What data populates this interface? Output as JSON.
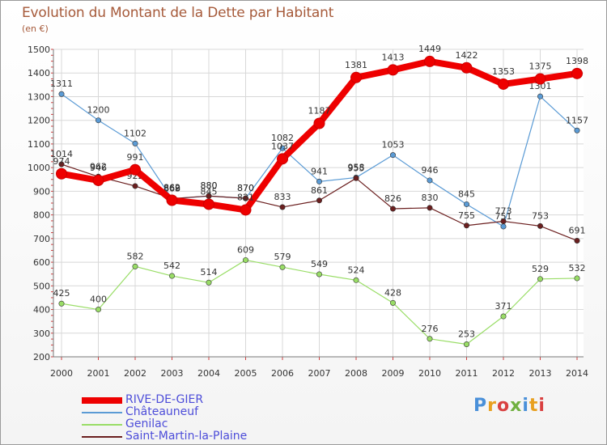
{
  "header": {
    "title": "Evolution du Montant de la Dette par Habitant",
    "unit": "(en €)"
  },
  "logo": {
    "text": "Proxiti",
    "colors": [
      "#4a90d9",
      "#e8a020",
      "#d94040",
      "#70b040",
      "#4a90d9",
      "#e8a020",
      "#d94040"
    ]
  },
  "chart_data": {
    "type": "line",
    "title": "Evolution du Montant de la Dette par Habitant",
    "ylabel": "(en €)",
    "xlabel": "",
    "x": [
      "2000",
      "2001",
      "2002",
      "2003",
      "2004",
      "2005",
      "2006",
      "2007",
      "2008",
      "2009",
      "2010",
      "2011",
      "2012",
      "2013",
      "2014"
    ],
    "ylim": [
      200,
      1500
    ],
    "yticks": [
      200,
      300,
      400,
      500,
      600,
      700,
      800,
      900,
      1000,
      1100,
      1200,
      1300,
      1400,
      1500
    ],
    "grid": true,
    "legend_position": "bottom-left",
    "series": [
      {
        "name": "RIVE-DE-GIER",
        "color": "#ee0000",
        "values": [
          974,
          946,
          991,
          862,
          845,
          821,
          1037,
          1187,
          1381,
          1413,
          1449,
          1422,
          1353,
          1375,
          1398
        ]
      },
      {
        "name": "Châteauneuf",
        "color": "#5b9bd5",
        "values": [
          1311,
          1200,
          1102,
          868,
          880,
          870,
          1082,
          941,
          958,
          1053,
          946,
          845,
          751,
          1301,
          1157
        ]
      },
      {
        "name": "Genilac",
        "color": "#99dd66",
        "values": [
          425,
          400,
          582,
          542,
          514,
          609,
          579,
          549,
          524,
          428,
          276,
          253,
          371,
          529,
          532
        ]
      },
      {
        "name": "Saint-Martin-la-Plaine",
        "color": "#6b1f1f",
        "values": [
          1014,
          962,
          922,
          869,
          880,
          870,
          833,
          861,
          955,
          826,
          830,
          755,
          773,
          753,
          691
        ]
      }
    ]
  }
}
